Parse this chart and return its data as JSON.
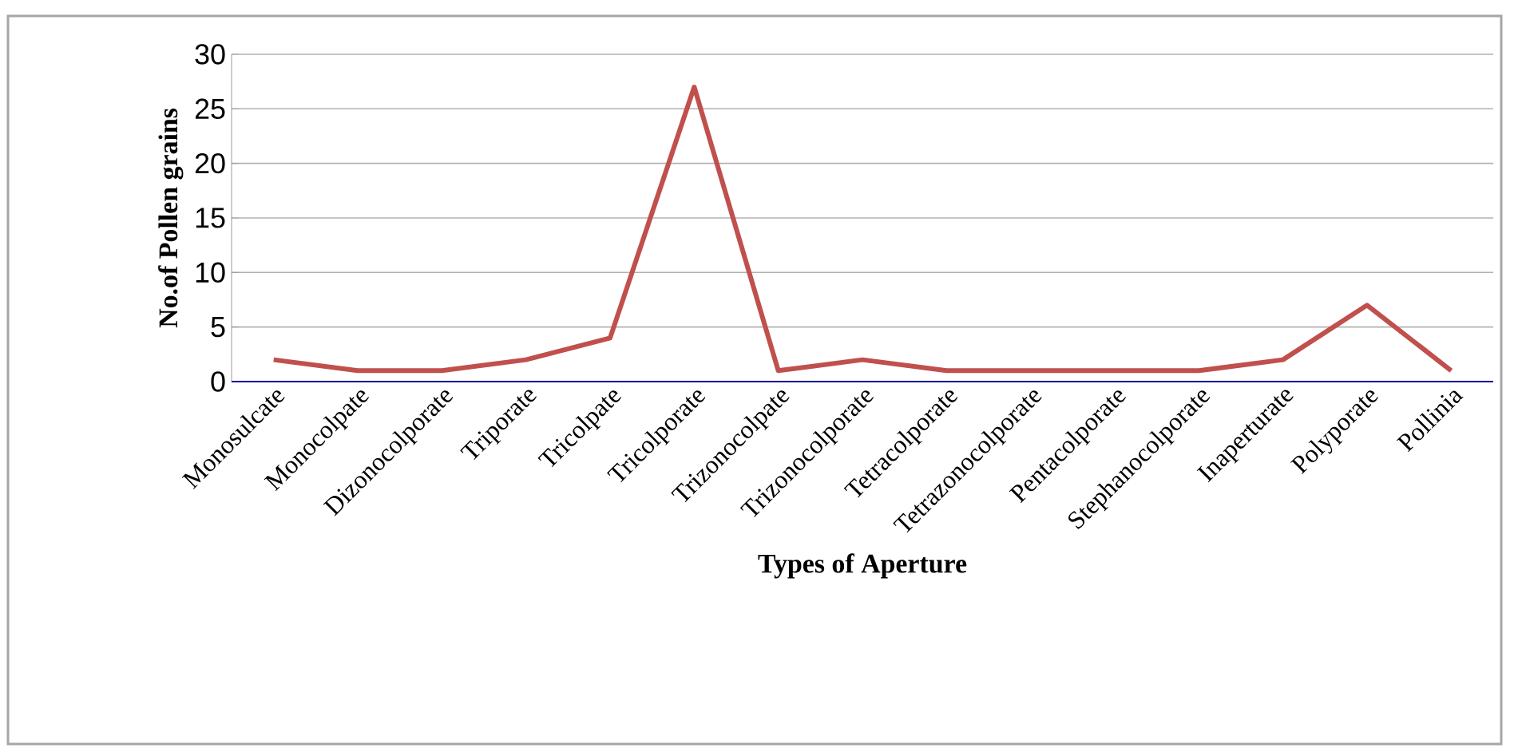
{
  "chart_data": {
    "type": "line",
    "xlabel": "Types of Aperture",
    "ylabel": "No.of Pollen grains",
    "categories": [
      "Monosulcate",
      "Monocolpate",
      "Dizonocolporate",
      "Triporate",
      "Tricolpate",
      "Tricolporate",
      "Trizonocolpate",
      "Trizonocolporate",
      "Tetracolporate",
      "Tetrazonocolporate",
      "Pentacolporate",
      "Stephanocolporate",
      "Inaperturate",
      "Polyporate",
      "Pollinia"
    ],
    "series": [
      {
        "color": "#c0504d",
        "values": [
          2,
          1,
          1,
          2,
          4,
          27,
          1,
          2,
          1,
          1,
          1,
          1,
          2,
          7,
          1
        ]
      }
    ],
    "ylim": [
      0,
      30
    ],
    "yticks": [
      0,
      5,
      10,
      15,
      20,
      25,
      30
    ],
    "grid": "y",
    "marker": "none",
    "line_style": "solid"
  }
}
